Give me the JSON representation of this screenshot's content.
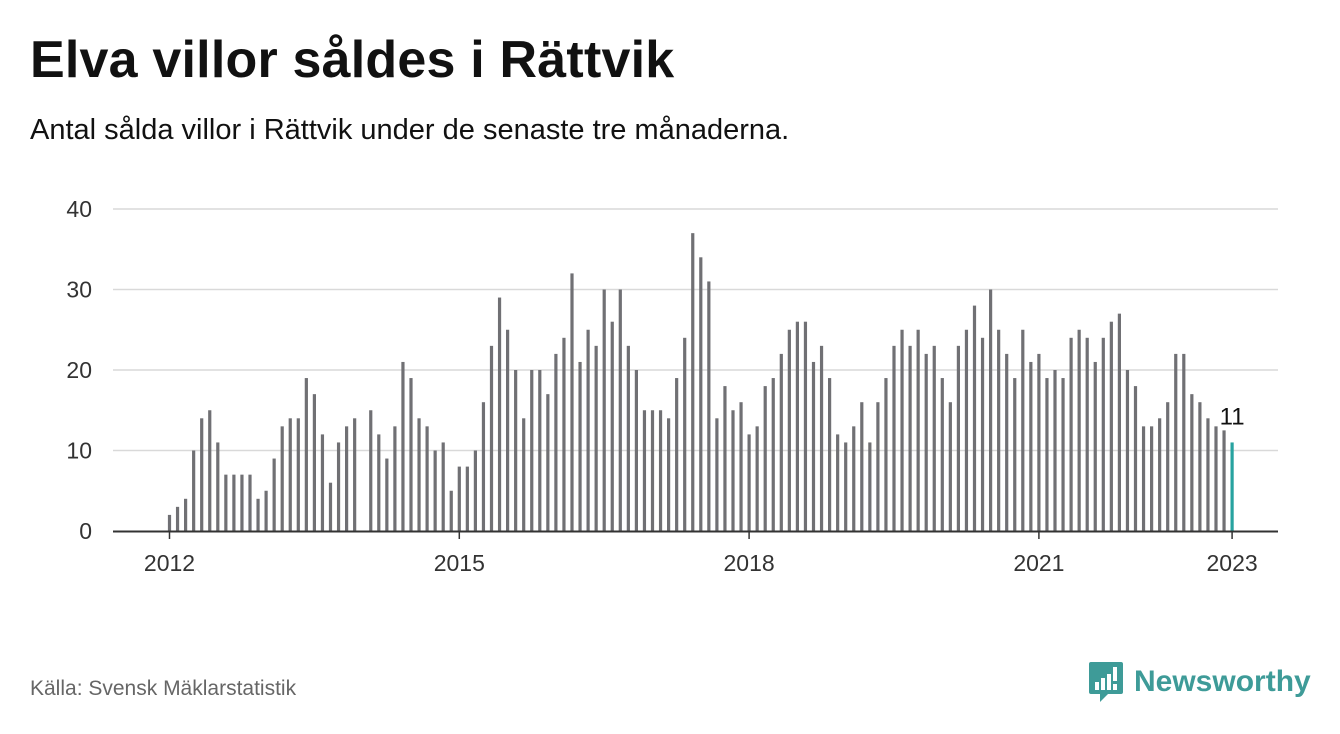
{
  "header": {
    "title": "Elva villor såldes i Rättvik",
    "subtitle": "Antal sålda villor i Rättvik under de senaste tre månaderna."
  },
  "footer": {
    "source": "Källa: Svensk Mäklarstatistik",
    "brand": "Newsworthy",
    "brand_icon": "bar-chart-icon"
  },
  "colors": {
    "bar": "#707074",
    "highlight": "#27a3a0",
    "grid": "#d9d9d9",
    "axis": "#333333",
    "brand": "#3e9b98"
  },
  "chart_data": {
    "type": "bar",
    "xlabel": "",
    "ylabel": "",
    "ylim": [
      0,
      40
    ],
    "yticks": [
      0,
      10,
      20,
      30,
      40
    ],
    "x_start": "2012-01",
    "xticks": [
      {
        "label": "2012",
        "date": "2012-01"
      },
      {
        "label": "2015",
        "date": "2015-01"
      },
      {
        "label": "2018",
        "date": "2018-01"
      },
      {
        "label": "2021",
        "date": "2021-01"
      },
      {
        "label": "2023",
        "date": "2023-01"
      }
    ],
    "values": [
      2,
      3,
      4,
      10,
      14,
      15,
      11,
      7,
      7,
      7,
      7,
      4,
      5,
      9,
      13,
      14,
      14,
      19,
      17,
      12,
      6,
      11,
      13,
      14,
      null,
      15,
      12,
      9,
      13,
      21,
      19,
      14,
      13,
      10,
      11,
      5,
      8,
      8,
      10,
      16,
      23,
      29,
      25,
      20,
      14,
      20,
      20,
      17,
      22,
      24,
      32,
      21,
      25,
      23,
      30,
      26,
      30,
      23,
      20,
      15,
      15,
      15,
      14,
      19,
      24,
      37,
      34,
      31,
      14,
      18,
      15,
      16,
      12,
      13,
      18,
      19,
      22,
      25,
      26,
      26,
      21,
      23,
      19,
      12,
      11,
      13,
      16,
      11,
      16,
      19,
      23,
      25,
      23,
      25,
      22,
      23,
      19,
      16,
      23,
      25,
      28,
      24,
      30,
      25,
      22,
      19,
      25,
      21,
      22,
      19,
      20,
      19,
      24,
      25,
      24,
      21,
      24,
      26,
      27,
      20,
      18,
      13,
      13,
      14,
      16,
      22,
      22,
      17,
      16,
      14,
      13,
      12.5,
      11
    ],
    "highlight": {
      "label": "11",
      "value": 11
    }
  }
}
